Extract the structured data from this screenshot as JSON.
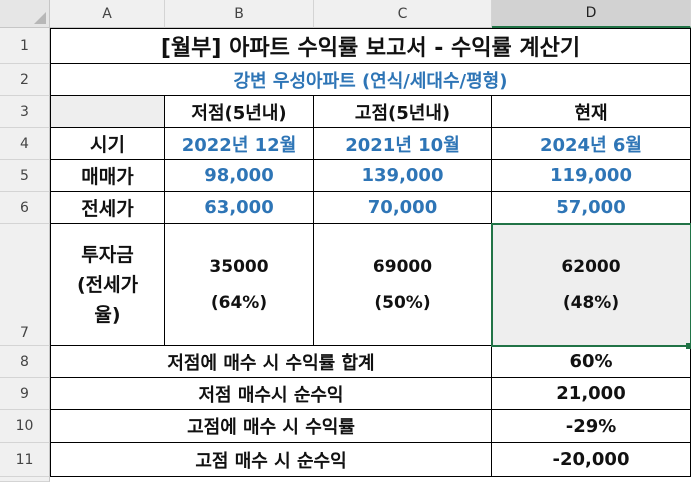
{
  "columns": [
    "A",
    "B",
    "C",
    "D"
  ],
  "rows": [
    "1",
    "2",
    "3",
    "4",
    "5",
    "6",
    "7",
    "8",
    "9",
    "10",
    "11"
  ],
  "title": "[월부] 아파트 수익률 보고서 - 수익률 계산기",
  "subtitle": "강변 우성아파트 (연식/세대수/평형)",
  "header_row": {
    "low": "저점(5년내)",
    "high": "고점(5년내)",
    "current": "현재"
  },
  "period_row": {
    "label": "시기",
    "low": "2022년 12월",
    "high": "2021년 10월",
    "current": "2024년 6월"
  },
  "sale_row": {
    "label": "매매가",
    "low": "98,000",
    "high": "139,000",
    "current": "119,000"
  },
  "jeonse_row": {
    "label": "전세가",
    "low": "63,000",
    "high": "70,000",
    "current": "57,000"
  },
  "investment_row": {
    "label_1": "투자금",
    "label_2": "(전세가",
    "label_3": "율)",
    "low_amount": "35000",
    "low_ratio": "(64%)",
    "high_amount": "69000",
    "high_ratio": "(50%)",
    "current_amount": "62000",
    "current_ratio": "(48%)"
  },
  "summary": [
    {
      "label": "저점에 매수 시 수익률 합계",
      "value": "60%"
    },
    {
      "label": "저점 매수시 순수익",
      "value": "21,000"
    },
    {
      "label": "고점에 매수 시 수익률",
      "value": "-29%"
    },
    {
      "label": "고점 매수 시 순수익",
      "value": "-20,000"
    }
  ],
  "colors": {
    "accent_blue": "#2e75b6",
    "selection_green": "#217346",
    "shaded_cell": "#eeeeee"
  }
}
